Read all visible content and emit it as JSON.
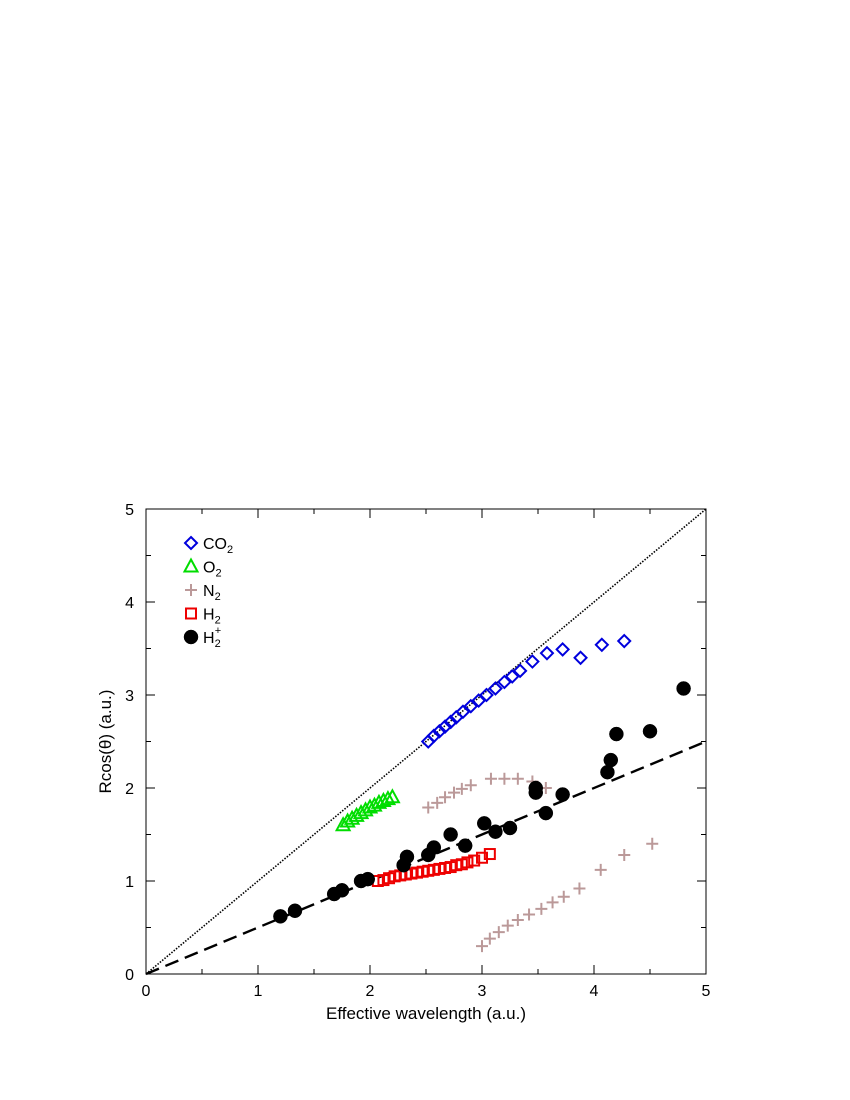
{
  "chart_data": {
    "type": "scatter",
    "title": "",
    "xlabel": "Effective wavelength (a.u.)",
    "ylabel": "Rcos(θ) (a.u.)",
    "xlim": [
      0,
      5
    ],
    "ylim": [
      0,
      5
    ],
    "xticks": [
      "0",
      "1",
      "2",
      "3",
      "4",
      "5"
    ],
    "yticks": [
      "0",
      "1",
      "2",
      "3",
      "4",
      "5"
    ],
    "grid": false,
    "legend_position": "top-left",
    "series": [
      {
        "name": "CO",
        "name_sub": "2",
        "name_sup": "",
        "marker": "diamond",
        "color": "#0000dd",
        "points": [
          [
            2.52,
            2.5
          ],
          [
            2.57,
            2.56
          ],
          [
            2.62,
            2.61
          ],
          [
            2.67,
            2.66
          ],
          [
            2.72,
            2.71
          ],
          [
            2.77,
            2.76
          ],
          [
            2.83,
            2.82
          ],
          [
            2.9,
            2.88
          ],
          [
            2.97,
            2.94
          ],
          [
            3.04,
            3.0
          ],
          [
            3.12,
            3.07
          ],
          [
            3.2,
            3.14
          ],
          [
            3.27,
            3.2
          ],
          [
            3.34,
            3.26
          ],
          [
            3.45,
            3.36
          ],
          [
            3.58,
            3.45
          ],
          [
            3.72,
            3.49
          ],
          [
            3.88,
            3.4
          ],
          [
            4.07,
            3.54
          ],
          [
            4.27,
            3.58
          ]
        ]
      },
      {
        "name": "O",
        "name_sub": "2",
        "name_sup": "",
        "marker": "triangle",
        "color": "#00dd00",
        "points": [
          [
            1.76,
            1.6
          ],
          [
            1.8,
            1.64
          ],
          [
            1.84,
            1.67
          ],
          [
            1.88,
            1.7
          ],
          [
            1.92,
            1.73
          ],
          [
            1.96,
            1.76
          ],
          [
            2.0,
            1.79
          ],
          [
            2.04,
            1.81
          ],
          [
            2.08,
            1.84
          ],
          [
            2.12,
            1.86
          ],
          [
            2.16,
            1.88
          ],
          [
            2.2,
            1.9
          ]
        ]
      },
      {
        "name": "N",
        "name_sub": "2",
        "name_sup": "",
        "marker": "plus",
        "color": "#bb9999",
        "points": [
          [
            2.52,
            1.79
          ],
          [
            2.6,
            1.84
          ],
          [
            2.67,
            1.9
          ],
          [
            2.75,
            1.95
          ],
          [
            2.82,
            1.99
          ],
          [
            2.9,
            2.03
          ],
          [
            3.08,
            2.1
          ],
          [
            3.2,
            2.1
          ],
          [
            3.32,
            2.1
          ],
          [
            3.45,
            2.07
          ],
          [
            3.57,
            2.0
          ],
          [
            3.0,
            0.3
          ],
          [
            3.07,
            0.38
          ],
          [
            3.15,
            0.45
          ],
          [
            3.23,
            0.52
          ],
          [
            3.32,
            0.58
          ],
          [
            3.42,
            0.64
          ],
          [
            3.53,
            0.7
          ],
          [
            3.63,
            0.77
          ],
          [
            3.73,
            0.83
          ],
          [
            3.87,
            0.92
          ],
          [
            4.06,
            1.12
          ],
          [
            4.27,
            1.28
          ],
          [
            4.52,
            1.4
          ]
        ]
      },
      {
        "name": "H",
        "name_sub": "2",
        "name_sup": "",
        "marker": "square",
        "color": "#ee0000",
        "points": [
          [
            2.07,
            1.0
          ],
          [
            2.12,
            1.01
          ],
          [
            2.17,
            1.03
          ],
          [
            2.22,
            1.05
          ],
          [
            2.27,
            1.06
          ],
          [
            2.32,
            1.07
          ],
          [
            2.37,
            1.08
          ],
          [
            2.42,
            1.09
          ],
          [
            2.47,
            1.1
          ],
          [
            2.52,
            1.11
          ],
          [
            2.57,
            1.12
          ],
          [
            2.62,
            1.13
          ],
          [
            2.67,
            1.14
          ],
          [
            2.72,
            1.15
          ],
          [
            2.77,
            1.17
          ],
          [
            2.82,
            1.18
          ],
          [
            2.87,
            1.2
          ],
          [
            2.93,
            1.22
          ],
          [
            3.0,
            1.25
          ],
          [
            3.07,
            1.29
          ]
        ]
      },
      {
        "name": "H",
        "name_sub": "2",
        "name_sup": "+",
        "marker": "circle",
        "color": "#000000",
        "points": [
          [
            1.2,
            0.62
          ],
          [
            1.33,
            0.68
          ],
          [
            1.68,
            0.86
          ],
          [
            1.75,
            0.9
          ],
          [
            1.92,
            1.0
          ],
          [
            1.98,
            1.02
          ],
          [
            2.3,
            1.17
          ],
          [
            2.33,
            1.26
          ],
          [
            2.52,
            1.28
          ],
          [
            2.57,
            1.36
          ],
          [
            2.72,
            1.5
          ],
          [
            2.85,
            1.38
          ],
          [
            3.02,
            1.62
          ],
          [
            3.12,
            1.53
          ],
          [
            3.25,
            1.57
          ],
          [
            3.48,
            1.95
          ],
          [
            3.48,
            2.0
          ],
          [
            3.57,
            1.73
          ],
          [
            3.72,
            1.93
          ],
          [
            4.12,
            2.17
          ],
          [
            4.15,
            2.3
          ],
          [
            4.2,
            2.58
          ],
          [
            4.5,
            2.61
          ],
          [
            4.8,
            3.07
          ]
        ]
      }
    ],
    "lines": [
      {
        "style": "dotted",
        "slope": 1,
        "x": [
          0,
          5
        ],
        "y": [
          0,
          5
        ]
      },
      {
        "style": "dashed",
        "slope": 0.5,
        "x": [
          0,
          5
        ],
        "y": [
          0,
          2.5
        ]
      }
    ]
  }
}
